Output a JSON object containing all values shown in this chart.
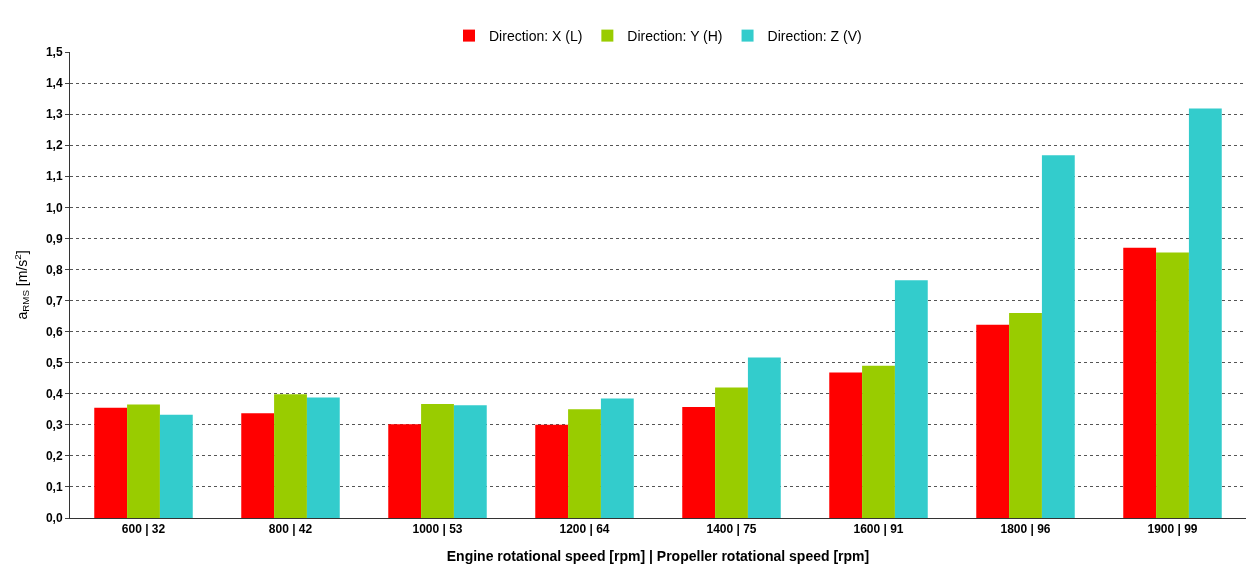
{
  "chart_data": {
    "type": "bar",
    "xlabel": "Engine rotational speed [rpm] | Propeller rotational speed [rpm]",
    "ylabel": "a$_{RMS}$ [m/s$^{2}$]",
    "categories": [
      "600 | 32",
      "800 | 42",
      "1000 | 53",
      "1200 | 64",
      "1400 | 75",
      "1600 | 91",
      "1800 | 96",
      "1900 | 99"
    ],
    "series": [
      {
        "name": "Direction: X (L)",
        "color": "#ff0000",
        "values": [
          0.355,
          0.337,
          0.302,
          0.3,
          0.357,
          0.468,
          0.622,
          0.87
        ]
      },
      {
        "name": "Direction: Y (H)",
        "color": "#99cc00",
        "values": [
          0.365,
          0.398,
          0.367,
          0.35,
          0.42,
          0.49,
          0.66,
          0.855
        ]
      },
      {
        "name": "Direction: Z (V)",
        "color": "#33cccc",
        "values": [
          0.332,
          0.388,
          0.363,
          0.385,
          0.517,
          0.765,
          1.168,
          1.318
        ]
      }
    ],
    "ylim": [
      0,
      1.5
    ],
    "yticks": [
      {
        "value": 0,
        "label": "0,0"
      },
      {
        "value": 0.1,
        "label": "0,1"
      },
      {
        "value": 0.2,
        "label": "0,2"
      },
      {
        "value": 0.3,
        "label": "0,3"
      },
      {
        "value": 0.4,
        "label": "0,4"
      },
      {
        "value": 0.5,
        "label": "0,5"
      },
      {
        "value": 0.6,
        "label": "0,6"
      },
      {
        "value": 0.7,
        "label": "0,7"
      },
      {
        "value": 0.8,
        "label": "0,8"
      },
      {
        "value": 0.9,
        "label": "0,9"
      },
      {
        "value": 1.0,
        "label": "1,0"
      },
      {
        "value": 1.1,
        "label": "1,1"
      },
      {
        "value": 1.2,
        "label": "1,2"
      },
      {
        "value": 1.3,
        "label": "1,3"
      },
      {
        "value": 1.4,
        "label": "1,4"
      },
      {
        "value": 1.5,
        "label": "1,5"
      }
    ],
    "grid": "y",
    "legend": "top"
  }
}
